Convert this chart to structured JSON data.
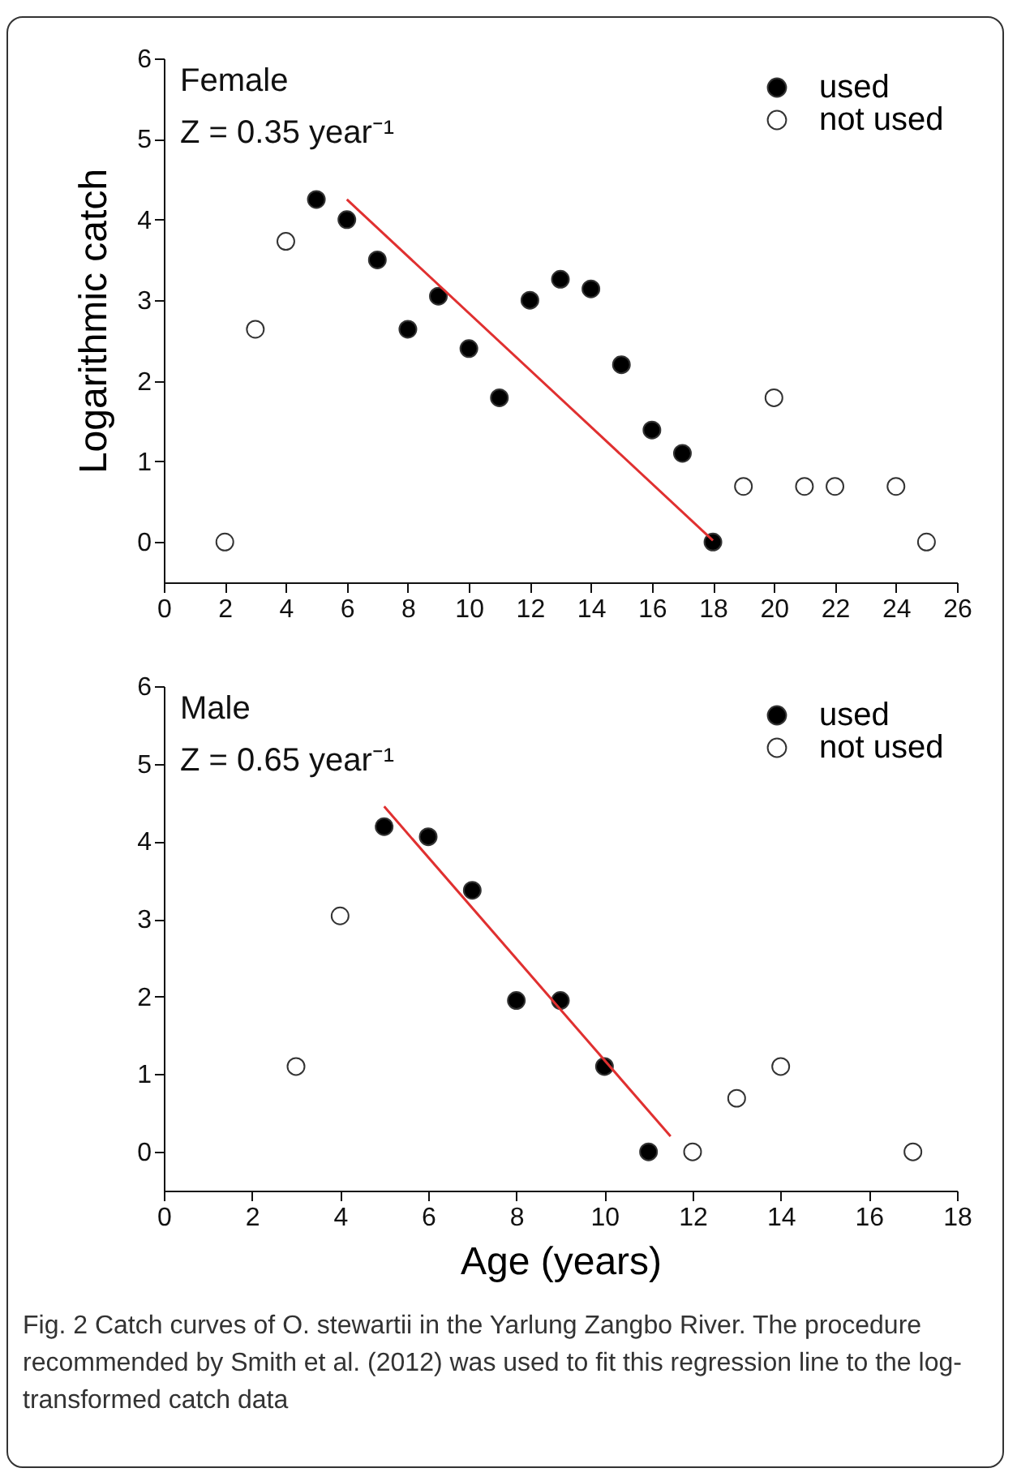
{
  "chart_data": [
    {
      "type": "scatter",
      "ylabel": "Logarithmic catch",
      "xlim": [
        0,
        26
      ],
      "xticks": [
        0,
        2,
        4,
        6,
        8,
        10,
        12,
        14,
        16,
        18,
        20,
        22,
        24,
        26
      ],
      "ylim": [
        -0.5,
        6
      ],
      "yticks": [
        0,
        1,
        2,
        3,
        4,
        5,
        6
      ],
      "legend": "top right",
      "grid": false,
      "annotations": [
        "Female",
        "Z = 0.35 year⁻¹"
      ],
      "series": [
        {
          "name": "used",
          "color": "#000000",
          "marker": "circle",
          "x": [
            5,
            6,
            7,
            8,
            9,
            10,
            11,
            12,
            13,
            14,
            15,
            16,
            17,
            18
          ],
          "values": [
            4.25,
            4.0,
            3.5,
            2.64,
            3.05,
            2.4,
            1.79,
            3.0,
            3.26,
            3.14,
            2.2,
            1.39,
            1.1,
            0
          ]
        },
        {
          "name": "not used",
          "color": "#ffffff",
          "marker": "circle",
          "x": [
            2,
            3,
            4,
            19,
            20,
            21,
            22,
            24,
            25
          ],
          "values": [
            0,
            2.64,
            3.73,
            0.69,
            1.79,
            0.69,
            0.69,
            0.69,
            0
          ]
        },
        {
          "type": "line",
          "color": "#e03030",
          "marker": "none",
          "x": [
            6,
            18
          ],
          "values": [
            4.25,
            0.02
          ]
        }
      ]
    },
    {
      "type": "scatter",
      "xlabel": "Age (years)",
      "xlim": [
        0,
        18
      ],
      "xticks": [
        0,
        2,
        4,
        6,
        8,
        10,
        12,
        14,
        16,
        18
      ],
      "ylim": [
        -0.5,
        6
      ],
      "yticks": [
        0,
        1,
        2,
        3,
        4,
        5,
        6
      ],
      "legend": "top right",
      "grid": false,
      "annotations": [
        "Male",
        "Z = 0.65 year⁻¹",
        "Fig. 2 Catch curves of O. stewartii in the Yarlung Zangbo River. The procedure recommended by Smith et al. (2012) was used to fit this regression line to the log-transformed catch data"
      ],
      "series": [
        {
          "name": "used",
          "color": "#000000",
          "marker": "circle",
          "x": [
            5,
            6,
            7,
            8,
            9,
            10,
            11
          ],
          "values": [
            4.19,
            4.06,
            3.37,
            1.95,
            1.95,
            1.1,
            0
          ]
        },
        {
          "name": "not used",
          "color": "#ffffff",
          "marker": "circle",
          "x": [
            3,
            4,
            12,
            13,
            14,
            17
          ],
          "values": [
            1.1,
            3.04,
            0,
            0.69,
            1.1,
            0
          ]
        },
        {
          "type": "line",
          "color": "#e03030",
          "marker": "none",
          "x": [
            5,
            11.5
          ],
          "values": [
            4.45,
            0.2
          ]
        }
      ]
    }
  ]
}
